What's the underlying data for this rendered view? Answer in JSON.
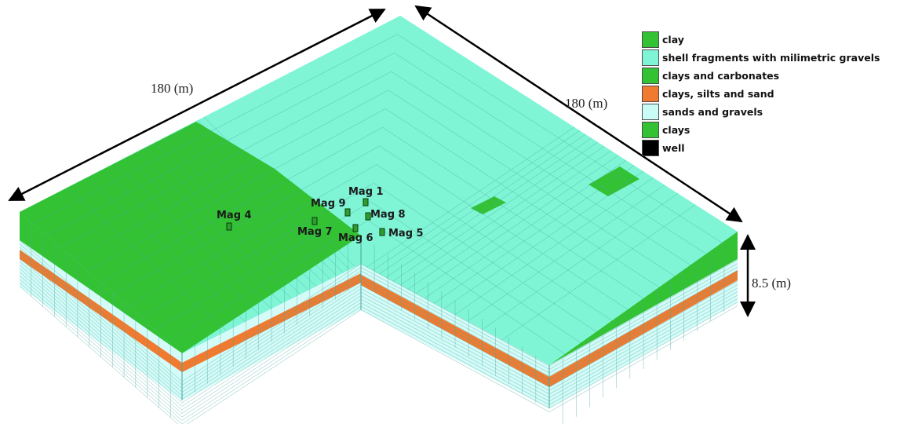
{
  "dimensions": {
    "length_a": "180 (m)",
    "length_b": "180 (m)",
    "depth": "8.5 (m)"
  },
  "legend": [
    {
      "label": "clay",
      "color": "#33c233"
    },
    {
      "label": "shell fragments with milimetric gravels",
      "color": "#7ff5d6"
    },
    {
      "label": "clays and carbonates",
      "color": "#33c233"
    },
    {
      "label": "clays, silts and sand",
      "color": "#f07a30"
    },
    {
      "label": "sands and gravels",
      "color": "#c9fbf7"
    },
    {
      "label": "clays",
      "color": "#33c233"
    },
    {
      "label": "well",
      "color": "#000000"
    }
  ],
  "wells": [
    {
      "label": "Mag 1"
    },
    {
      "label": "Mag 9"
    },
    {
      "label": "Mag 8"
    },
    {
      "label": "Mag 4"
    },
    {
      "label": "Mag 7"
    },
    {
      "label": "Mag 6"
    },
    {
      "label": "Mag 5"
    }
  ],
  "colors": {
    "green": "#33c233",
    "cyan": "#7ff5d6",
    "orange": "#f07a30",
    "pale_cyan": "#d4fbf8",
    "mesh": "#4aa8a0"
  }
}
